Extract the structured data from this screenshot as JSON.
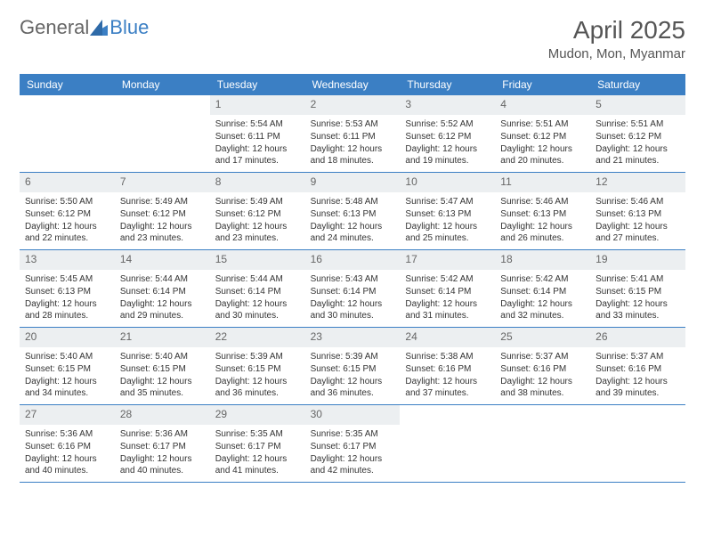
{
  "logo": {
    "text_gray": "General",
    "text_blue": "Blue"
  },
  "title": "April 2025",
  "location": "Mudon, Mon, Myanmar",
  "colors": {
    "header_bg": "#3b7fc4",
    "header_text": "#ffffff",
    "daynum_bg": "#eceff1",
    "border": "#3b7fc4",
    "body_text": "#333333",
    "logo_gray": "#666666",
    "logo_blue": "#3b7fc4"
  },
  "day_names": [
    "Sunday",
    "Monday",
    "Tuesday",
    "Wednesday",
    "Thursday",
    "Friday",
    "Saturday"
  ],
  "weeks": [
    [
      null,
      null,
      {
        "n": "1",
        "sr": "5:54 AM",
        "ss": "6:11 PM",
        "dl": "12 hours and 17 minutes."
      },
      {
        "n": "2",
        "sr": "5:53 AM",
        "ss": "6:11 PM",
        "dl": "12 hours and 18 minutes."
      },
      {
        "n": "3",
        "sr": "5:52 AM",
        "ss": "6:12 PM",
        "dl": "12 hours and 19 minutes."
      },
      {
        "n": "4",
        "sr": "5:51 AM",
        "ss": "6:12 PM",
        "dl": "12 hours and 20 minutes."
      },
      {
        "n": "5",
        "sr": "5:51 AM",
        "ss": "6:12 PM",
        "dl": "12 hours and 21 minutes."
      }
    ],
    [
      {
        "n": "6",
        "sr": "5:50 AM",
        "ss": "6:12 PM",
        "dl": "12 hours and 22 minutes."
      },
      {
        "n": "7",
        "sr": "5:49 AM",
        "ss": "6:12 PM",
        "dl": "12 hours and 23 minutes."
      },
      {
        "n": "8",
        "sr": "5:49 AM",
        "ss": "6:12 PM",
        "dl": "12 hours and 23 minutes."
      },
      {
        "n": "9",
        "sr": "5:48 AM",
        "ss": "6:13 PM",
        "dl": "12 hours and 24 minutes."
      },
      {
        "n": "10",
        "sr": "5:47 AM",
        "ss": "6:13 PM",
        "dl": "12 hours and 25 minutes."
      },
      {
        "n": "11",
        "sr": "5:46 AM",
        "ss": "6:13 PM",
        "dl": "12 hours and 26 minutes."
      },
      {
        "n": "12",
        "sr": "5:46 AM",
        "ss": "6:13 PM",
        "dl": "12 hours and 27 minutes."
      }
    ],
    [
      {
        "n": "13",
        "sr": "5:45 AM",
        "ss": "6:13 PM",
        "dl": "12 hours and 28 minutes."
      },
      {
        "n": "14",
        "sr": "5:44 AM",
        "ss": "6:14 PM",
        "dl": "12 hours and 29 minutes."
      },
      {
        "n": "15",
        "sr": "5:44 AM",
        "ss": "6:14 PM",
        "dl": "12 hours and 30 minutes."
      },
      {
        "n": "16",
        "sr": "5:43 AM",
        "ss": "6:14 PM",
        "dl": "12 hours and 30 minutes."
      },
      {
        "n": "17",
        "sr": "5:42 AM",
        "ss": "6:14 PM",
        "dl": "12 hours and 31 minutes."
      },
      {
        "n": "18",
        "sr": "5:42 AM",
        "ss": "6:14 PM",
        "dl": "12 hours and 32 minutes."
      },
      {
        "n": "19",
        "sr": "5:41 AM",
        "ss": "6:15 PM",
        "dl": "12 hours and 33 minutes."
      }
    ],
    [
      {
        "n": "20",
        "sr": "5:40 AM",
        "ss": "6:15 PM",
        "dl": "12 hours and 34 minutes."
      },
      {
        "n": "21",
        "sr": "5:40 AM",
        "ss": "6:15 PM",
        "dl": "12 hours and 35 minutes."
      },
      {
        "n": "22",
        "sr": "5:39 AM",
        "ss": "6:15 PM",
        "dl": "12 hours and 36 minutes."
      },
      {
        "n": "23",
        "sr": "5:39 AM",
        "ss": "6:15 PM",
        "dl": "12 hours and 36 minutes."
      },
      {
        "n": "24",
        "sr": "5:38 AM",
        "ss": "6:16 PM",
        "dl": "12 hours and 37 minutes."
      },
      {
        "n": "25",
        "sr": "5:37 AM",
        "ss": "6:16 PM",
        "dl": "12 hours and 38 minutes."
      },
      {
        "n": "26",
        "sr": "5:37 AM",
        "ss": "6:16 PM",
        "dl": "12 hours and 39 minutes."
      }
    ],
    [
      {
        "n": "27",
        "sr": "5:36 AM",
        "ss": "6:16 PM",
        "dl": "12 hours and 40 minutes."
      },
      {
        "n": "28",
        "sr": "5:36 AM",
        "ss": "6:17 PM",
        "dl": "12 hours and 40 minutes."
      },
      {
        "n": "29",
        "sr": "5:35 AM",
        "ss": "6:17 PM",
        "dl": "12 hours and 41 minutes."
      },
      {
        "n": "30",
        "sr": "5:35 AM",
        "ss": "6:17 PM",
        "dl": "12 hours and 42 minutes."
      },
      null,
      null,
      null
    ]
  ],
  "labels": {
    "sunrise": "Sunrise:",
    "sunset": "Sunset:",
    "daylight": "Daylight:"
  }
}
